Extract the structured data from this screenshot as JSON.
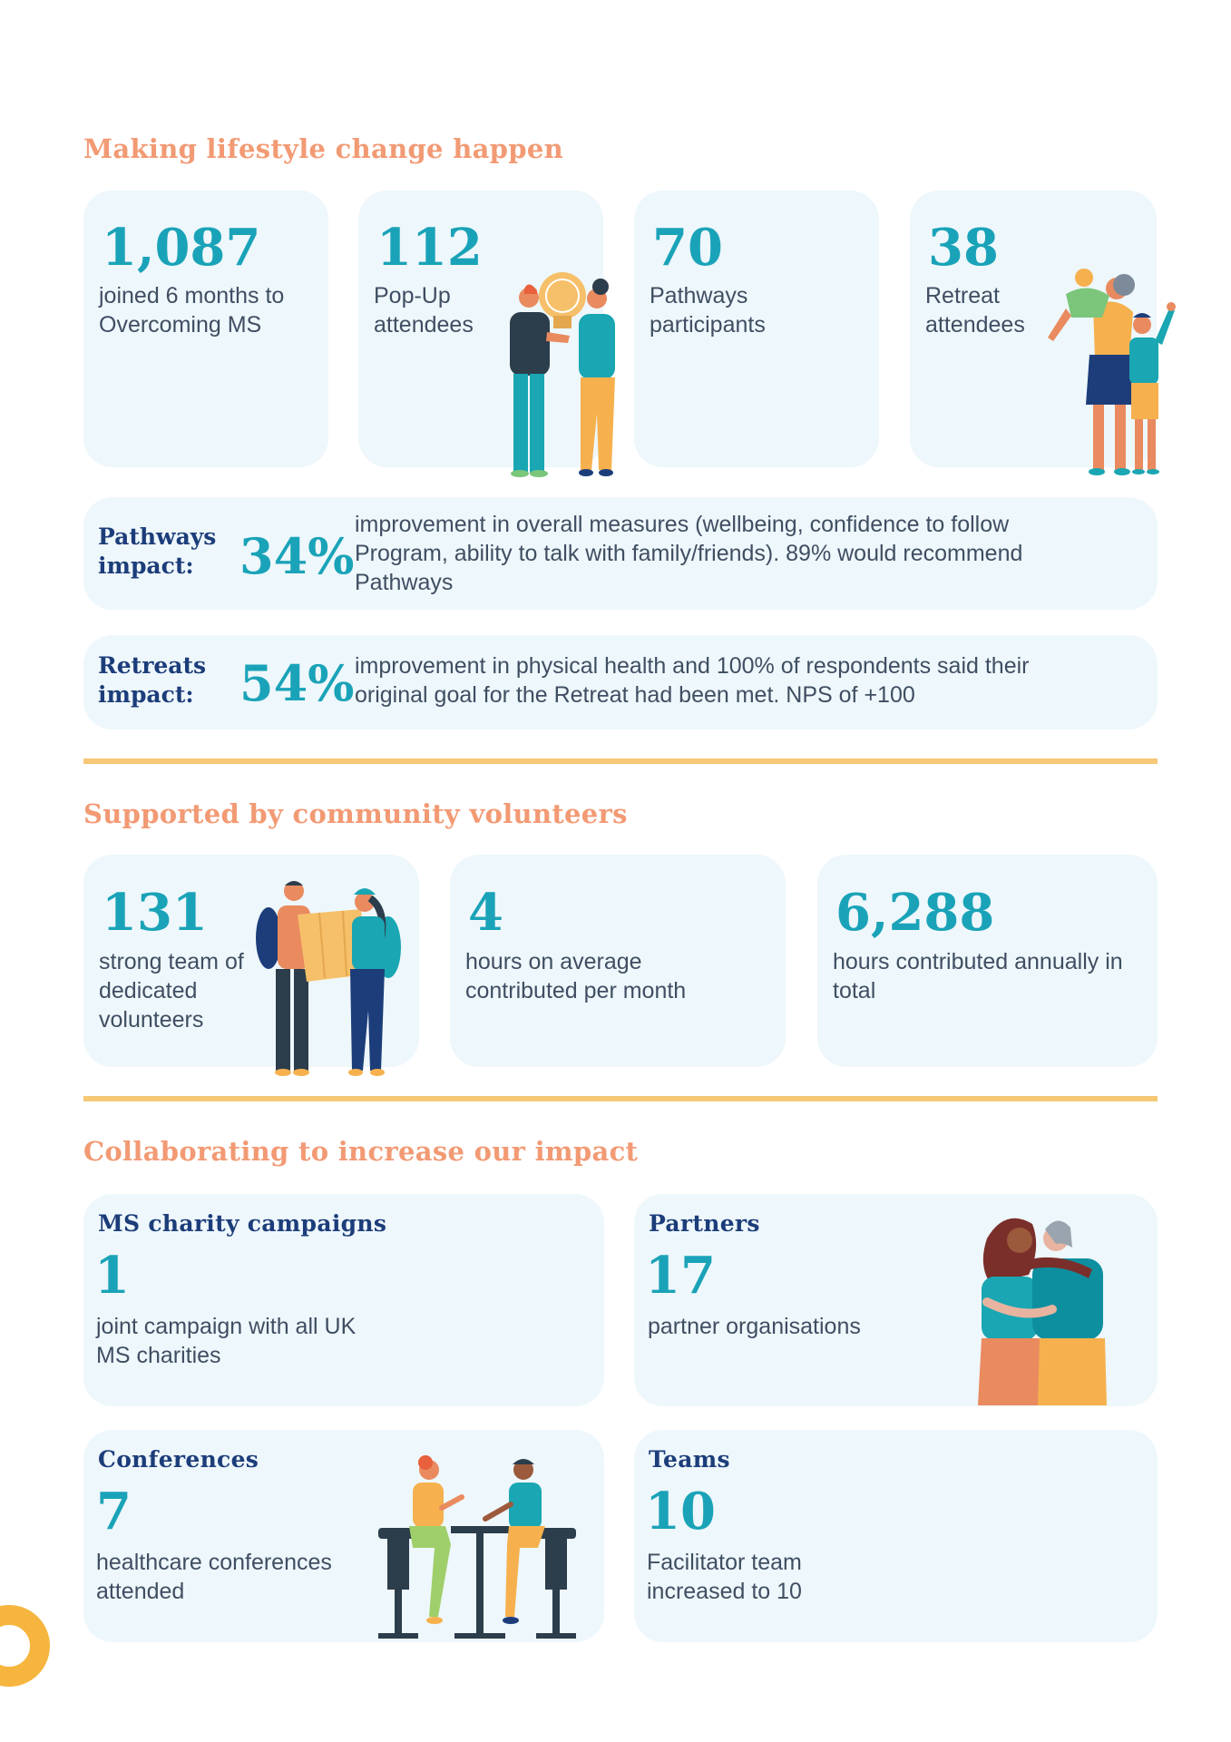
{
  "lifestyle": {
    "heading": "Making lifestyle change happen",
    "stats": [
      {
        "number": "1,087",
        "label": "joined 6 months to Overcoming MS"
      },
      {
        "number": "112",
        "label": "Pop-Up attendees"
      },
      {
        "number": "70",
        "label": "Pathways participants"
      },
      {
        "number": "38",
        "label": "Retreat attendees"
      }
    ],
    "impacts": [
      {
        "title": "Pathways impact:",
        "percent": "34%",
        "text": "improvement in overall measures (wellbeing, confidence to follow Program, ability to talk with family/friends). 89% would recommend Pathways"
      },
      {
        "title": "Retreats impact:",
        "percent": "54%",
        "text": "improvement in physical health and 100% of respondents said their original goal for the Retreat had been met. NPS of +100"
      }
    ]
  },
  "volunteers": {
    "heading": "Supported by community volunteers",
    "stats": [
      {
        "number": "131",
        "label": "strong team of dedicated volunteers"
      },
      {
        "number": "4",
        "label": "hours on average contributed per month"
      },
      {
        "number": "6,288",
        "label": "hours contributed annually in total"
      }
    ]
  },
  "collaborating": {
    "heading": "Collaborating to increase our impact",
    "cards": [
      {
        "title": "MS charity campaigns",
        "number": "1",
        "label": "joint campaign with all UK MS charities"
      },
      {
        "title": "Partners",
        "number": "17",
        "label": "partner organisations"
      },
      {
        "title": "Conferences",
        "number": "7",
        "label": "healthcare conferences attended"
      },
      {
        "title": "Teams",
        "number": "10",
        "label": "Facilitator team increased to 10"
      }
    ]
  },
  "colors": {
    "heading": "#f29a74",
    "number": "#1aa3b8",
    "navy": "#1c3d7a",
    "card": "#eef7fb",
    "divider": "#f6c876"
  },
  "illustrations": [
    "lightbulb-people-illustration",
    "family-hug-illustration",
    "volunteers-map-illustration",
    "partners-hug-illustration",
    "conference-table-illustration"
  ]
}
